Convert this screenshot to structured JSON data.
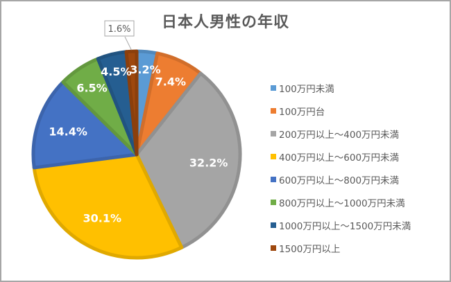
{
  "chart_data": {
    "type": "pie",
    "title": "日本人男性の年収",
    "categories": [
      "100万円未満",
      "100万円台",
      "200万円以上～400万円未満",
      "400万円以上～600万円未満",
      "600万円以上～800万円未満",
      "800万円以上～1000万円未満",
      "1000万円以上～1500万円未満",
      "1500万円以上"
    ],
    "values": [
      3.2,
      7.4,
      32.2,
      30.1,
      14.4,
      6.5,
      4.5,
      1.6
    ],
    "data_labels": [
      "3.2%",
      "7.4%",
      "32.2%",
      "30.1%",
      "14.4%",
      "6.5%",
      "4.5%",
      "1.6%"
    ],
    "colors": [
      "#5b9bd5",
      "#ed7d31",
      "#a5a5a5",
      "#ffc000",
      "#4472c4",
      "#70ad47",
      "#255e91",
      "#9e480e"
    ],
    "legend_position": "right",
    "start_angle_deg": 0,
    "direction": "clockwise"
  },
  "legend": {
    "items": [
      {
        "label": "100万円未満",
        "color": "#5b9bd5"
      },
      {
        "label": "100万円台",
        "color": "#ed7d31"
      },
      {
        "label": "200万円以上～400万円未満",
        "color": "#a5a5a5"
      },
      {
        "label": "400万円以上～600万円未満",
        "color": "#ffc000"
      },
      {
        "label": "600万円以上～800万円未満",
        "color": "#4472c4"
      },
      {
        "label": "800万円以上～1000万円未満",
        "color": "#70ad47"
      },
      {
        "label": "1000万円以上～1500万円未満",
        "color": "#255e91"
      },
      {
        "label": "1500万円以上",
        "color": "#9e480e"
      }
    ]
  }
}
